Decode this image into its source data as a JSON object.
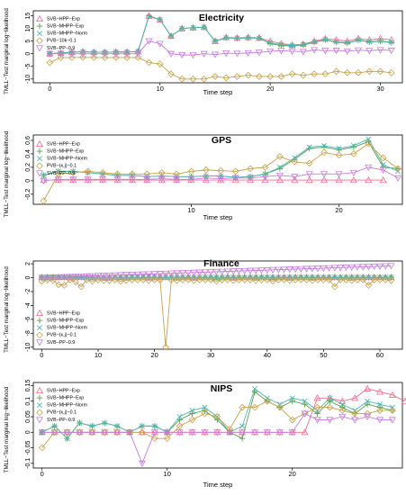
{
  "chart_data": [
    {
      "type": "line",
      "title": "Electricity",
      "xlabel": "Time step",
      "ylabel": "TMLL−Test marginal log−likelihood",
      "xlim": [
        -1.5,
        32
      ],
      "ylim": [
        -11.5,
        17
      ],
      "xticks": [
        0,
        10,
        20,
        30
      ],
      "yticks": [
        -10,
        -5,
        0,
        5,
        10,
        15
      ],
      "legend_position": "top-left",
      "series": [
        {
          "name": "SVB−HPP−Exp",
          "color": "#f46d8a",
          "marker": "triangle-up",
          "y": [
            0,
            0.3,
            0.6,
            0.8,
            0.6,
            0.6,
            0.7,
            0.7,
            0.9,
            15,
            13.5,
            7,
            10,
            10.3,
            10.5,
            5,
            6.5,
            6.3,
            6.5,
            6.3,
            5,
            4,
            3.5,
            3.8,
            5,
            6,
            5.5,
            5,
            6,
            5.5,
            6,
            5.5
          ]
        },
        {
          "name": "SVB−MHPP−Exp",
          "color": "#5aa04a",
          "marker": "plus",
          "y": [
            0,
            0.3,
            0.6,
            0.8,
            0.6,
            0.6,
            0.7,
            0.7,
            0.9,
            15,
            13.5,
            7,
            10,
            10.3,
            10.5,
            5,
            6.3,
            6.1,
            6.3,
            6.1,
            4,
            3.3,
            3,
            3.5,
            4.5,
            5.5,
            4.5,
            4.2,
            5.4,
            4.6,
            5,
            4.4
          ]
        },
        {
          "name": "SVB−MHPP−Norm",
          "color": "#4fb6b6",
          "marker": "x",
          "y": [
            0,
            0.3,
            0.6,
            0.8,
            0.6,
            0.6,
            0.7,
            0.7,
            0.9,
            14.7,
            13.5,
            7,
            10,
            10.3,
            10.5,
            5,
            6.3,
            6.1,
            6.3,
            6.1,
            4.3,
            3.6,
            3.2,
            3.7,
            4.7,
            5.6,
            4.7,
            4.4,
            5.5,
            4.8,
            5.1,
            4.6
          ]
        },
        {
          "name": "PVB−10k−0.1",
          "color": "#c8a24a",
          "marker": "diamond",
          "y": [
            -3.5,
            -1.5,
            -1.5,
            -1.4,
            -1.5,
            -1.5,
            -1.5,
            -1.5,
            -1.5,
            -3.5,
            -4,
            -8,
            -10,
            -10,
            -10,
            -9,
            -9.5,
            -9,
            -8.5,
            -9,
            -9,
            -9,
            -8,
            -8.5,
            -8,
            -8,
            -7,
            -7.5,
            -7.5,
            -7,
            -7,
            -7.5
          ]
        },
        {
          "name": "SVB−PP−0.9",
          "color": "#c77be0",
          "marker": "triangle-down",
          "y": [
            0,
            0,
            0,
            0,
            0,
            0,
            0,
            0,
            0,
            5,
            4,
            0,
            -0.5,
            -0.5,
            0,
            -0.3,
            0.2,
            0.1,
            0.3,
            0.5,
            1,
            1.2,
            1,
            0.8,
            1.5,
            1.2,
            1.3,
            1,
            1.4,
            1.2,
            1.5,
            1.3
          ]
        }
      ]
    },
    {
      "type": "line",
      "title": "GPS",
      "xlabel": "Time step",
      "ylabel": "TMLL−Test marginal log−likelihood",
      "xlim": [
        -0.7,
        24.3
      ],
      "ylim": [
        -0.35,
        0.68
      ],
      "xticks": [
        10,
        20
      ],
      "yticks": [
        -0.2,
        0,
        0.2,
        0.4,
        0.6
      ],
      "legend_position": "top-left",
      "series": [
        {
          "name": "SVB−HPP−Exp",
          "color": "#f46d8a",
          "marker": "triangle-up",
          "y": [
            0.01,
            0.01,
            0.01,
            0.01,
            0.01,
            0.01,
            0.01,
            0.01,
            0.01,
            0.01,
            0.01,
            0.01,
            0.01,
            0.01,
            0.01,
            0.01,
            0.01,
            0.01,
            0.01,
            0.01,
            0.01,
            0.01,
            0.01,
            0.01
          ]
        },
        {
          "name": "SVB−MHPP−Exp",
          "color": "#5aa04a",
          "marker": "plus",
          "y": [
            0.08,
            0.14,
            0.14,
            0.12,
            0.1,
            0.08,
            0.08,
            0.06,
            0.07,
            0.06,
            0.06,
            0.07,
            0.07,
            0.05,
            0.06,
            0.1,
            0.18,
            0.32,
            0.48,
            0.5,
            0.46,
            0.5,
            0.58,
            0.2,
            0.18
          ]
        },
        {
          "name": "SVB−MHPP−Norm",
          "color": "#4fb6b6",
          "marker": "x",
          "y": [
            0.08,
            0.14,
            0.14,
            0.12,
            0.1,
            0.08,
            0.08,
            0.06,
            0.07,
            0.06,
            0.06,
            0.07,
            0.07,
            0.05,
            0.06,
            0.1,
            0.2,
            0.34,
            0.5,
            0.52,
            0.48,
            0.52,
            0.62,
            0.24,
            0.14
          ]
        },
        {
          "name": "PVB−(κ,j)−0.1",
          "color": "#c8a24a",
          "marker": "diamond",
          "y": [
            -0.3,
            0.1,
            0.12,
            0.14,
            0.12,
            0.1,
            0.1,
            0.1,
            0.12,
            0.1,
            0.14,
            0.16,
            0.15,
            0.14,
            0.18,
            0.2,
            0.36,
            0.28,
            0.26,
            0.42,
            0.38,
            0.4,
            0.55,
            0.34,
            0.18
          ]
        },
        {
          "name": "SVB−PP−0.9",
          "color": "#c77be0",
          "marker": "triangle-down",
          "y": [
            0,
            0.02,
            0.02,
            0.02,
            0.02,
            0.02,
            0.02,
            0.02,
            0.03,
            0.02,
            0.02,
            0.04,
            0.03,
            0.04,
            0.04,
            0.06,
            0.08,
            0.06,
            0.1,
            0.1,
            0.1,
            0.12,
            0.2,
            0.16,
            0.04
          ]
        }
      ]
    },
    {
      "type": "line",
      "title": "Finance",
      "xlabel": "",
      "ylabel": "TMLL−Test marginal log−likelihood",
      "xlim": [
        -1.5,
        64
      ],
      "ylim": [
        -10.3,
        2.4
      ],
      "xticks": [
        0,
        10,
        20,
        30,
        40,
        50,
        60
      ],
      "yticks": [
        -10,
        -8,
        -6,
        -4,
        -2,
        0,
        2
      ],
      "legend_position": "bottom-left",
      "series": [
        {
          "name": "SVB−HPP−Exp",
          "color": "#f46d8a",
          "marker": "triangle-up",
          "y_all": 0.05
        },
        {
          "name": "SVB−MHPP−Exp",
          "color": "#5aa04a",
          "marker": "plus",
          "y_all": 0.05
        },
        {
          "name": "SVB−MHPP−Norm",
          "color": "#4fb6b6",
          "marker": "x",
          "y_all": 0.05
        },
        {
          "name": "PVB−(κ,j)−0.1",
          "color": "#c8a24a",
          "marker": "diamond",
          "y": [
            -0.5,
            -0.3,
            -0.4,
            -1,
            -1.1,
            -0.3,
            -0.6,
            -1.3,
            -0.3,
            -0.5,
            -0.3,
            -0.4,
            -0.4,
            -0.3,
            -0.5,
            -0.4,
            -0.3,
            -0.3,
            -0.3,
            -0.4,
            -0.3,
            -0.3,
            -10,
            -0.3,
            -0.4,
            -0.3,
            -0.3,
            -0.4,
            -0.3,
            -0.3,
            -0.3,
            -0.5,
            -0.3,
            -0.3,
            -0.4,
            -0.3,
            -0.3,
            -0.3,
            -0.4,
            -0.3,
            -0.3,
            -0.5,
            -0.3,
            -0.3,
            -0.4,
            -0.3,
            -0.3,
            -0.3,
            -0.4,
            -0.3,
            -0.3,
            -0.3,
            -1.3,
            -0.3,
            -0.3,
            -0.4,
            -0.3,
            -0.3,
            -1.1,
            -0.3,
            -0.3,
            -0.3,
            -0.4
          ]
        },
        {
          "name": "SVB−PP−0.9",
          "color": "#c77be0",
          "marker": "triangle-down",
          "y_linear": [
            0,
            1.7
          ]
        }
      ]
    },
    {
      "type": "line",
      "title": "NIPS",
      "xlabel": "Time step",
      "ylabel": "TMLL−Test marginal log−likelihood",
      "xlim": [
        -0.7,
        28.8
      ],
      "ylim": [
        -0.115,
        0.16
      ],
      "xticks": [
        0,
        10,
        20
      ],
      "yticks": [
        -0.1,
        -0.05,
        0,
        0.05,
        0.1,
        0.15
      ],
      "legend_position": "top-left",
      "series": [
        {
          "name": "SVB−HPP−Exp",
          "color": "#f46d8a",
          "marker": "triangle-up",
          "y": [
            0,
            0,
            0,
            0,
            0,
            0,
            0,
            0,
            0,
            0,
            0,
            0,
            0,
            0,
            0,
            0,
            0,
            0,
            0,
            0,
            0,
            0,
            0.11,
            0.11,
            0.1,
            0.11,
            0.14,
            0.13,
            0.12,
            0.1
          ]
        },
        {
          "name": "SVB−MHPP−Exp",
          "color": "#5aa04a",
          "marker": "plus",
          "y": [
            0,
            0.02,
            -0.02,
            0.03,
            0.02,
            0.03,
            0.02,
            0,
            0.02,
            0.02,
            0,
            0.04,
            0.06,
            0.07,
            0.04,
            0,
            -0.02,
            0.13,
            0.1,
            0.08,
            0.1,
            0.09,
            0.06,
            0.1,
            0.08,
            0.06,
            0.09,
            0.08,
            0.07
          ]
        },
        {
          "name": "SVB−MHPP−Norm",
          "color": "#4fb6b6",
          "marker": "x",
          "y": [
            0,
            0.02,
            -0.02,
            0.03,
            0.02,
            0.03,
            0.02,
            0,
            0.02,
            0.02,
            0,
            0.05,
            0.07,
            0.08,
            0.05,
            0,
            0.02,
            0.14,
            0.11,
            0.09,
            0.11,
            0.1,
            0.07,
            0.11,
            0.09,
            0.07,
            0.1,
            0.09,
            0.08
          ]
        },
        {
          "name": "PVB−(κ,j)−0.1",
          "color": "#c8a24a",
          "marker": "diamond",
          "y": [
            -0.05,
            0,
            0,
            0,
            0,
            0,
            0,
            0,
            0,
            -0.02,
            -0.02,
            0.02,
            0.04,
            0.06,
            0.05,
            0.01,
            0.08,
            0.08,
            0.1,
            0.08,
            0.04,
            0.06,
            0.08,
            0.08,
            0.07,
            0.06,
            0.06,
            0.07,
            0.07
          ]
        },
        {
          "name": "SVB−PP−0.9",
          "color": "#c77be0",
          "marker": "triangle-down",
          "y": [
            0,
            0,
            0,
            0,
            0,
            0,
            0,
            0,
            -0.1,
            0,
            0,
            0,
            0,
            0,
            0,
            0,
            0,
            0,
            0,
            0,
            0,
            0.06,
            0.04,
            0.04,
            0.05,
            0.04,
            0.05,
            0.04,
            0.04
          ]
        }
      ]
    }
  ]
}
